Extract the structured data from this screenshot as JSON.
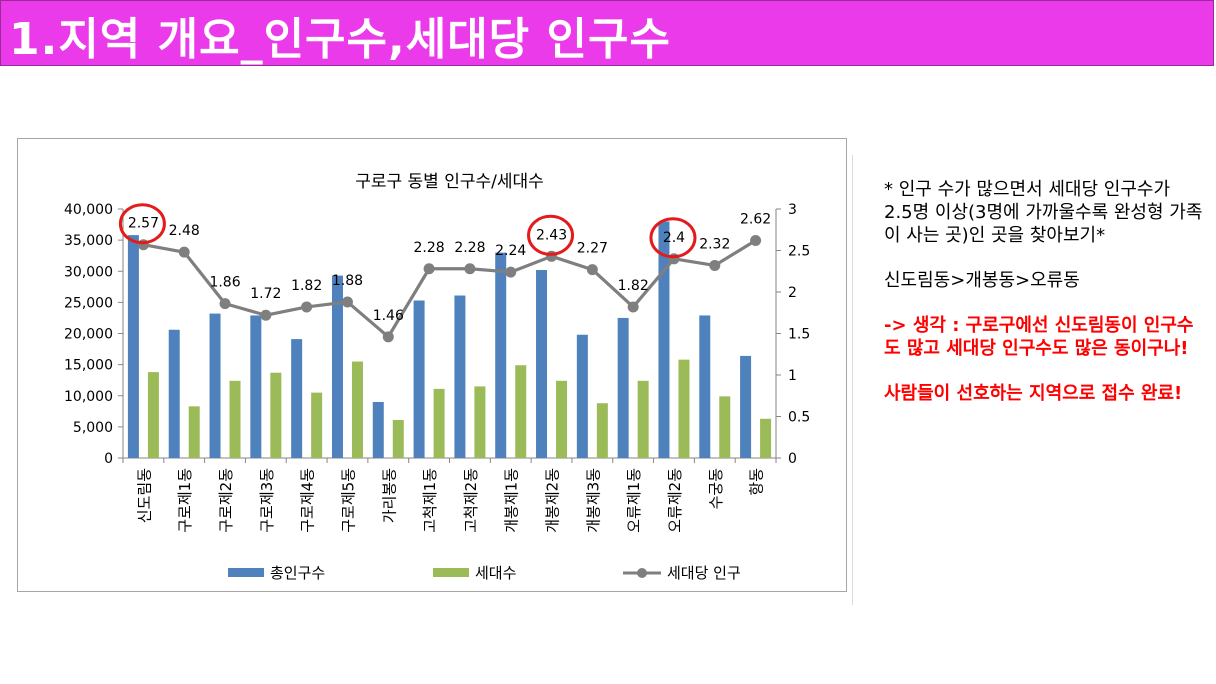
{
  "page_title": "1.지역 개요_인구수,세대당 인구수",
  "colors": {
    "title_bg": "#ea3ae9",
    "bar_population": "#4f81bd",
    "bar_households": "#9bbb59",
    "line_per_household": "#7f7f7f",
    "highlight_circle": "#e31b1b",
    "note_red": "#ff0000"
  },
  "notes": {
    "paragraph1": "* 인구 수가 많으면서 세대당 인구수가 2.5명 이상(3명에 가까울수록 완성형 가족이 사는 곳)인 곳을 찾아보기*",
    "ranking": "신도림동>개봉동>오류동",
    "thought": "-> 생각 : 구로구에선 신도림동이 인구수도 많고 세대당 인구수도 많은 동이구나!",
    "conclusion": "사람들이 선호하는 지역으로 접수 완료!"
  },
  "chart_data": {
    "type": "bar",
    "title": "구로구 동별 인구수/세대수",
    "categories": [
      "신도림동",
      "구로제1동",
      "구로제2동",
      "구로제3동",
      "구로제4동",
      "구로제5동",
      "가리봉동",
      "고척제1동",
      "고척제2동",
      "개봉제1동",
      "개봉제2동",
      "개봉제3동",
      "오류제1동",
      "오류제2동",
      "수궁동",
      "항동"
    ],
    "series": [
      {
        "name": "총인구수",
        "type": "bar",
        "axis": "left",
        "values": [
          35800,
          20600,
          23200,
          22900,
          19100,
          29300,
          9000,
          25300,
          26100,
          33000,
          30200,
          19800,
          22500,
          38000,
          22900,
          16400
        ]
      },
      {
        "name": "세대수",
        "type": "bar",
        "axis": "left",
        "values": [
          13800,
          8300,
          12400,
          13700,
          10500,
          15500,
          6100,
          11100,
          11500,
          14900,
          12400,
          8800,
          12400,
          15800,
          9900,
          6300
        ]
      },
      {
        "name": "세대당 인구",
        "type": "line",
        "axis": "right",
        "values": [
          2.57,
          2.48,
          1.86,
          1.72,
          1.82,
          1.88,
          1.46,
          2.28,
          2.28,
          2.24,
          2.43,
          2.27,
          1.82,
          2.4,
          2.32,
          2.62
        ],
        "labels": [
          "2.57",
          "2.48",
          "1.86",
          "1.72",
          "1.82",
          "1.88",
          "1.46",
          "2.28",
          "2.28",
          "2.24",
          "2.43",
          "2.27",
          "1.82",
          "2.4",
          "2.32",
          "2.62"
        ]
      }
    ],
    "y_left": {
      "range": [
        0,
        40000
      ],
      "ticks": [
        "0",
        "5,000",
        "10,000",
        "15,000",
        "20,000",
        "25,000",
        "30,000",
        "35,000",
        "40,000"
      ]
    },
    "y_right": {
      "range": [
        0,
        3
      ],
      "ticks": [
        "0",
        "0.5",
        "1",
        "1.5",
        "2",
        "2.5",
        "3"
      ]
    },
    "highlighted_categories": [
      "신도림동",
      "개봉제2동",
      "오류제2동"
    ],
    "legend": {
      "position": "bottom",
      "items": [
        "총인구수",
        "세대수",
        "세대당 인구"
      ]
    },
    "grid": false
  }
}
